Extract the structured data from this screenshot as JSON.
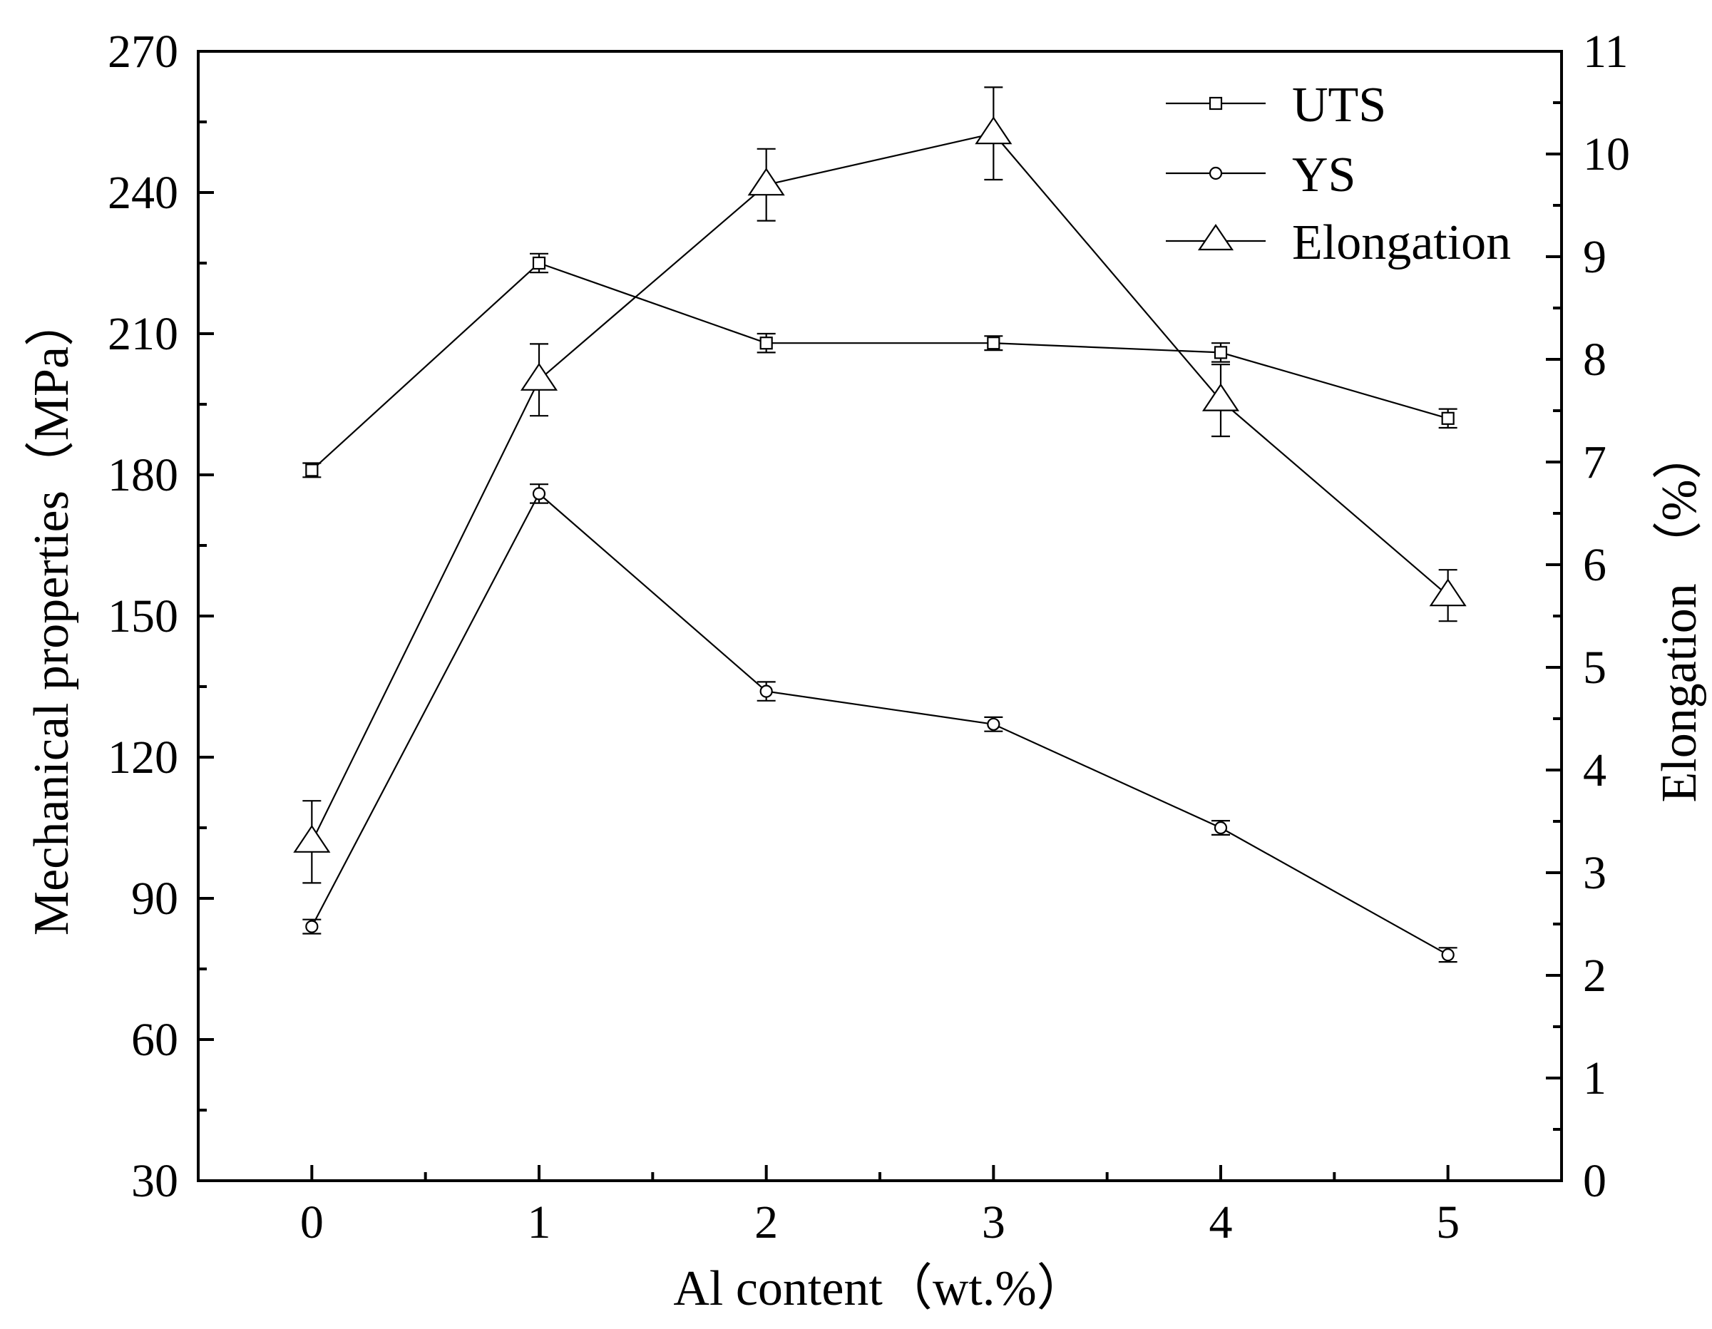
{
  "chart_data": {
    "type": "line",
    "xlabel": "Al content（wt.%）",
    "ylabel_left": "Mechanical properties（MPa）",
    "ylabel_right": "Elongation （%）",
    "x": [
      0,
      1,
      2,
      3,
      4,
      5
    ],
    "x_ticks": [
      "0",
      "1",
      "2",
      "3",
      "4",
      "5"
    ],
    "xlim": [
      -0.5,
      5.5
    ],
    "ylim_left": [
      30,
      270
    ],
    "ylim_right": [
      0,
      11
    ],
    "left_ticks": [
      "30",
      "60",
      "90",
      "120",
      "150",
      "180",
      "210",
      "240",
      "270"
    ],
    "right_ticks": [
      "0",
      "1",
      "2",
      "3",
      "4",
      "5",
      "6",
      "7",
      "8",
      "9",
      "10",
      "11"
    ],
    "grid": false,
    "legend_position": "top-right",
    "series": [
      {
        "name": "UTS",
        "axis": "left",
        "marker": "square",
        "values": [
          181,
          225,
          208,
          208,
          206,
          192
        ],
        "errors": [
          1.5,
          2,
          2,
          1.5,
          2,
          2
        ]
      },
      {
        "name": "YS",
        "axis": "left",
        "marker": "circle",
        "values": [
          84,
          176,
          134,
          127,
          105,
          78
        ],
        "errors": [
          1.5,
          2,
          2,
          1.5,
          1.5,
          1.5
        ]
      },
      {
        "name": "Elongation",
        "axis": "right",
        "marker": "triangle",
        "values": [
          3.3,
          7.8,
          9.7,
          10.2,
          7.6,
          5.7
        ],
        "errors": [
          0.4,
          0.35,
          0.35,
          0.45,
          0.35,
          0.25
        ]
      }
    ]
  }
}
